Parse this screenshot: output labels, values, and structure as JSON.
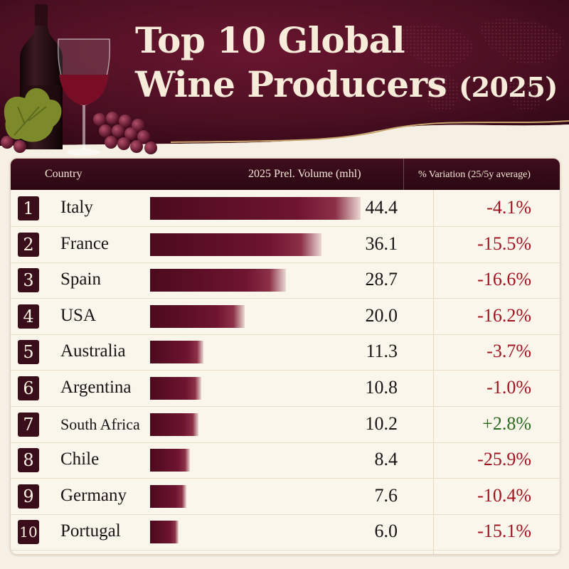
{
  "title": {
    "line1": "Top 10 Global",
    "line2": "Wine Producers",
    "year": "(2025)"
  },
  "colors": {
    "header_bg": "#4a0f22",
    "bar": "#6e1431",
    "negative": "#a3121f",
    "positive": "#2a6b1f",
    "background": "#f6efe3"
  },
  "icons": [
    "wine-bottle-icon",
    "wine-glass-icon",
    "grapes-icon",
    "grape-leaf-icon",
    "world-map-icon"
  ],
  "chart_data": {
    "type": "bar",
    "orientation": "horizontal",
    "title": "Top 10 Global Wine Producers (2025)",
    "columns": {
      "country": "Country",
      "volume": "2025 Prel. Volume (mhl)",
      "variation": "% Variation (25/5y average)"
    },
    "rows": [
      {
        "rank": "1",
        "country": "Italy",
        "volume": 44.4,
        "volume_label": "44.4",
        "variation_label": "-4.1%"
      },
      {
        "rank": "2",
        "country": "France",
        "volume": 36.1,
        "volume_label": "36.1",
        "variation_label": "-15.5%"
      },
      {
        "rank": "3",
        "country": "Spain",
        "volume": 28.7,
        "volume_label": "28.7",
        "variation_label": "-16.6%"
      },
      {
        "rank": "4",
        "country": "USA",
        "volume": 20.0,
        "volume_label": "20.0",
        "variation_label": "-16.2%"
      },
      {
        "rank": "5",
        "country": "Australia",
        "volume": 11.3,
        "volume_label": "11.3",
        "variation_label": "-3.7%"
      },
      {
        "rank": "6",
        "country": "Argentina",
        "volume": 10.8,
        "volume_label": "10.8",
        "variation_label": "-1.0%"
      },
      {
        "rank": "7",
        "country": "South Africa",
        "volume": 10.2,
        "volume_label": "10.2",
        "variation_label": "+2.8%"
      },
      {
        "rank": "8",
        "country": "Chile",
        "volume": 8.4,
        "volume_label": "8.4",
        "variation_label": "-25.9%"
      },
      {
        "rank": "9",
        "country": "Germany",
        "volume": 7.6,
        "volume_label": "7.6",
        "variation_label": "-10.4%"
      },
      {
        "rank": "10",
        "country": "Portugal",
        "volume": 6.0,
        "volume_label": "6.0",
        "variation_label": "-15.1%"
      }
    ]
  }
}
